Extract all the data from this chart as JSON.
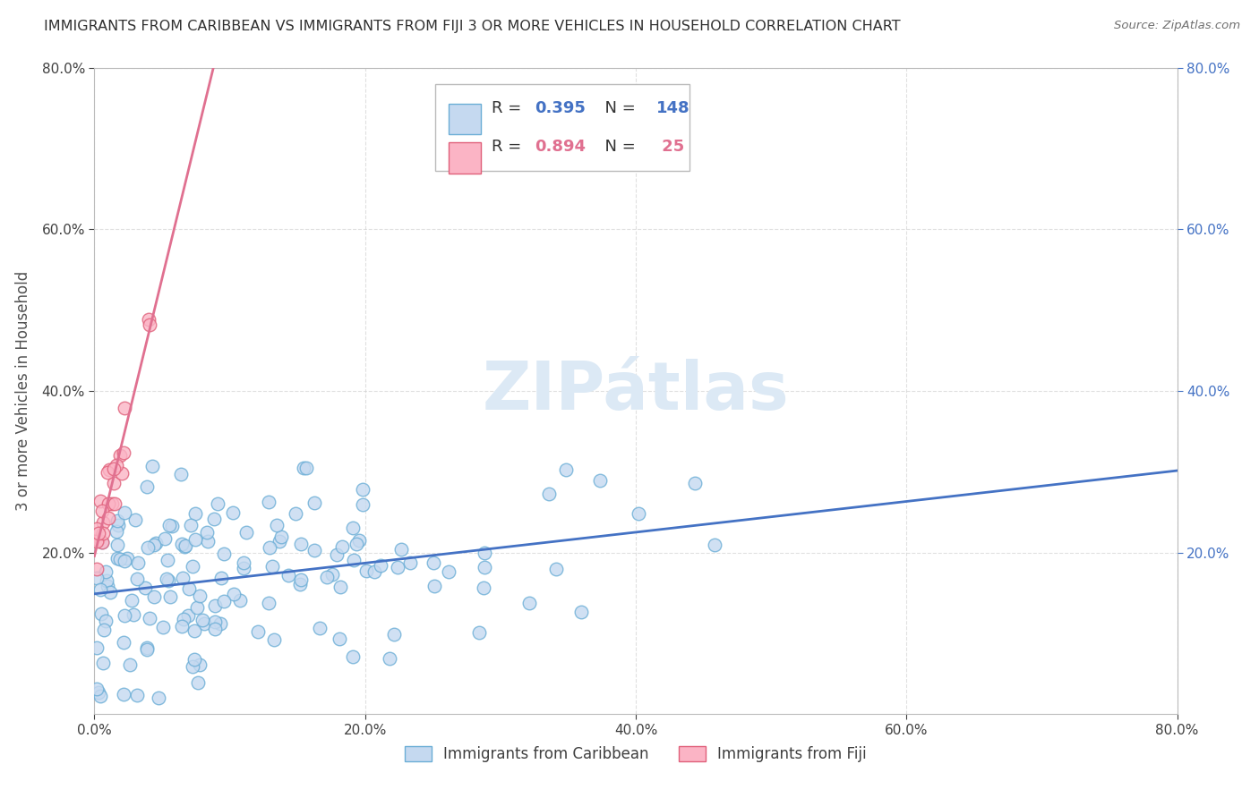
{
  "title": "IMMIGRANTS FROM CARIBBEAN VS IMMIGRANTS FROM FIJI 3 OR MORE VEHICLES IN HOUSEHOLD CORRELATION CHART",
  "source": "Source: ZipAtlas.com",
  "ylabel": "3 or more Vehicles in Household",
  "xlim": [
    0.0,
    0.8
  ],
  "ylim": [
    0.0,
    0.8
  ],
  "xtick_labels": [
    "0.0%",
    "20.0%",
    "40.0%",
    "60.0%",
    "80.0%"
  ],
  "xtick_vals": [
    0.0,
    0.2,
    0.4,
    0.6,
    0.8
  ],
  "ytick_labels": [
    "20.0%",
    "40.0%",
    "60.0%",
    "80.0%"
  ],
  "ytick_vals": [
    0.2,
    0.4,
    0.6,
    0.8
  ],
  "right_ytick_labels": [
    "20.0%",
    "40.0%",
    "60.0%",
    "80.0%"
  ],
  "right_ytick_vals": [
    0.2,
    0.4,
    0.6,
    0.8
  ],
  "caribbean_color": "#c5d9f0",
  "caribbean_edge_color": "#6baed6",
  "fiji_color": "#fbb4c5",
  "fiji_edge_color": "#e0607a",
  "trend_caribbean_color": "#4472c4",
  "trend_fiji_color": "#e07090",
  "watermark_color": "#dce9f5",
  "legend_label_caribbean": "Immigrants from Caribbean",
  "legend_label_fiji": "Immigrants from Fiji",
  "R_caribbean": 0.395,
  "N_caribbean": 148,
  "R_fiji": 0.894,
  "N_fiji": 25,
  "background_color": "#ffffff",
  "grid_color": "#cccccc",
  "title_color": "#303030",
  "axis_label_color": "#505050"
}
